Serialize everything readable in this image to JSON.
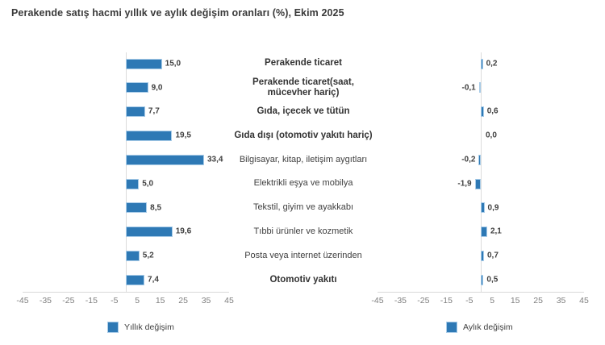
{
  "chart_data": {
    "type": "bar",
    "orientation": "horizontal",
    "title": "Perakende satış hacmi yıllık ve aylık değişim oranları (%), Ekim 2025",
    "xlim": [
      -45,
      45
    ],
    "ticks": [
      -45,
      -35,
      -25,
      -15,
      -5,
      5,
      15,
      25,
      35,
      45
    ],
    "grid": false,
    "legend_position": "bottom",
    "bar_color": "#2E79B5",
    "bar_border_color": "#A9CCE8",
    "categories": [
      {
        "label": "Perakende ticaret",
        "bold": true
      },
      {
        "label": "Perakende ticaret(saat, mücevher hariç)",
        "bold": true
      },
      {
        "label": "Gıda, içecek ve tütün",
        "bold": true
      },
      {
        "label": "Gıda dışı (otomotiv yakıtı hariç)",
        "bold": true
      },
      {
        "label": "Bilgisayar, kitap, iletişim aygıtları",
        "bold": false
      },
      {
        "label": "Elektrikli eşya ve mobilya",
        "bold": false
      },
      {
        "label": "Tekstil, giyim ve ayakkabı",
        "bold": false
      },
      {
        "label": "Tıbbi ürünler ve kozmetik",
        "bold": false
      },
      {
        "label": "Posta veya internet üzerinden",
        "bold": false
      },
      {
        "label": "Otomotiv yakıtı",
        "bold": true
      }
    ],
    "series": [
      {
        "name": "Yıllık değişim",
        "values": [
          15.0,
          9.0,
          7.7,
          19.5,
          33.4,
          5.0,
          8.5,
          19.6,
          5.2,
          7.4
        ]
      },
      {
        "name": "Aylık değişim",
        "values": [
          0.2,
          -0.1,
          0.6,
          0.0,
          -0.2,
          -1.9,
          0.9,
          2.1,
          0.7,
          0.5
        ]
      }
    ]
  }
}
